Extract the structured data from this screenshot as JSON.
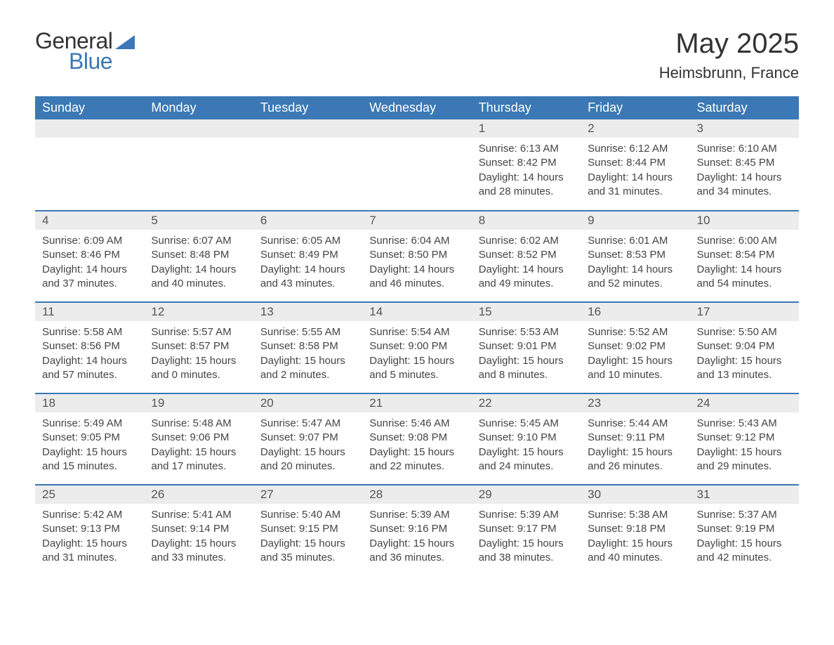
{
  "logo": {
    "text1": "General",
    "text2": "Blue"
  },
  "title": "May 2025",
  "subtitle": "Heimsbrunn, France",
  "colors": {
    "header_bg": "#3b78b5",
    "header_text": "#ffffff",
    "daynum_bg": "#ececec",
    "row_sep": "#3b78b5",
    "logo_blue": "#3b78b5"
  },
  "weekdays": [
    "Sunday",
    "Monday",
    "Tuesday",
    "Wednesday",
    "Thursday",
    "Friday",
    "Saturday"
  ],
  "weeks": [
    [
      null,
      null,
      null,
      null,
      {
        "n": "1",
        "sr": "6:13 AM",
        "ss": "8:42 PM",
        "dl": "14 hours and 28 minutes."
      },
      {
        "n": "2",
        "sr": "6:12 AM",
        "ss": "8:44 PM",
        "dl": "14 hours and 31 minutes."
      },
      {
        "n": "3",
        "sr": "6:10 AM",
        "ss": "8:45 PM",
        "dl": "14 hours and 34 minutes."
      }
    ],
    [
      {
        "n": "4",
        "sr": "6:09 AM",
        "ss": "8:46 PM",
        "dl": "14 hours and 37 minutes."
      },
      {
        "n": "5",
        "sr": "6:07 AM",
        "ss": "8:48 PM",
        "dl": "14 hours and 40 minutes."
      },
      {
        "n": "6",
        "sr": "6:05 AM",
        "ss": "8:49 PM",
        "dl": "14 hours and 43 minutes."
      },
      {
        "n": "7",
        "sr": "6:04 AM",
        "ss": "8:50 PM",
        "dl": "14 hours and 46 minutes."
      },
      {
        "n": "8",
        "sr": "6:02 AM",
        "ss": "8:52 PM",
        "dl": "14 hours and 49 minutes."
      },
      {
        "n": "9",
        "sr": "6:01 AM",
        "ss": "8:53 PM",
        "dl": "14 hours and 52 minutes."
      },
      {
        "n": "10",
        "sr": "6:00 AM",
        "ss": "8:54 PM",
        "dl": "14 hours and 54 minutes."
      }
    ],
    [
      {
        "n": "11",
        "sr": "5:58 AM",
        "ss": "8:56 PM",
        "dl": "14 hours and 57 minutes."
      },
      {
        "n": "12",
        "sr": "5:57 AM",
        "ss": "8:57 PM",
        "dl": "15 hours and 0 minutes."
      },
      {
        "n": "13",
        "sr": "5:55 AM",
        "ss": "8:58 PM",
        "dl": "15 hours and 2 minutes."
      },
      {
        "n": "14",
        "sr": "5:54 AM",
        "ss": "9:00 PM",
        "dl": "15 hours and 5 minutes."
      },
      {
        "n": "15",
        "sr": "5:53 AM",
        "ss": "9:01 PM",
        "dl": "15 hours and 8 minutes."
      },
      {
        "n": "16",
        "sr": "5:52 AM",
        "ss": "9:02 PM",
        "dl": "15 hours and 10 minutes."
      },
      {
        "n": "17",
        "sr": "5:50 AM",
        "ss": "9:04 PM",
        "dl": "15 hours and 13 minutes."
      }
    ],
    [
      {
        "n": "18",
        "sr": "5:49 AM",
        "ss": "9:05 PM",
        "dl": "15 hours and 15 minutes."
      },
      {
        "n": "19",
        "sr": "5:48 AM",
        "ss": "9:06 PM",
        "dl": "15 hours and 17 minutes."
      },
      {
        "n": "20",
        "sr": "5:47 AM",
        "ss": "9:07 PM",
        "dl": "15 hours and 20 minutes."
      },
      {
        "n": "21",
        "sr": "5:46 AM",
        "ss": "9:08 PM",
        "dl": "15 hours and 22 minutes."
      },
      {
        "n": "22",
        "sr": "5:45 AM",
        "ss": "9:10 PM",
        "dl": "15 hours and 24 minutes."
      },
      {
        "n": "23",
        "sr": "5:44 AM",
        "ss": "9:11 PM",
        "dl": "15 hours and 26 minutes."
      },
      {
        "n": "24",
        "sr": "5:43 AM",
        "ss": "9:12 PM",
        "dl": "15 hours and 29 minutes."
      }
    ],
    [
      {
        "n": "25",
        "sr": "5:42 AM",
        "ss": "9:13 PM",
        "dl": "15 hours and 31 minutes."
      },
      {
        "n": "26",
        "sr": "5:41 AM",
        "ss": "9:14 PM",
        "dl": "15 hours and 33 minutes."
      },
      {
        "n": "27",
        "sr": "5:40 AM",
        "ss": "9:15 PM",
        "dl": "15 hours and 35 minutes."
      },
      {
        "n": "28",
        "sr": "5:39 AM",
        "ss": "9:16 PM",
        "dl": "15 hours and 36 minutes."
      },
      {
        "n": "29",
        "sr": "5:39 AM",
        "ss": "9:17 PM",
        "dl": "15 hours and 38 minutes."
      },
      {
        "n": "30",
        "sr": "5:38 AM",
        "ss": "9:18 PM",
        "dl": "15 hours and 40 minutes."
      },
      {
        "n": "31",
        "sr": "5:37 AM",
        "ss": "9:19 PM",
        "dl": "15 hours and 42 minutes."
      }
    ]
  ],
  "labels": {
    "sunrise": "Sunrise: ",
    "sunset": "Sunset: ",
    "daylight": "Daylight: "
  }
}
